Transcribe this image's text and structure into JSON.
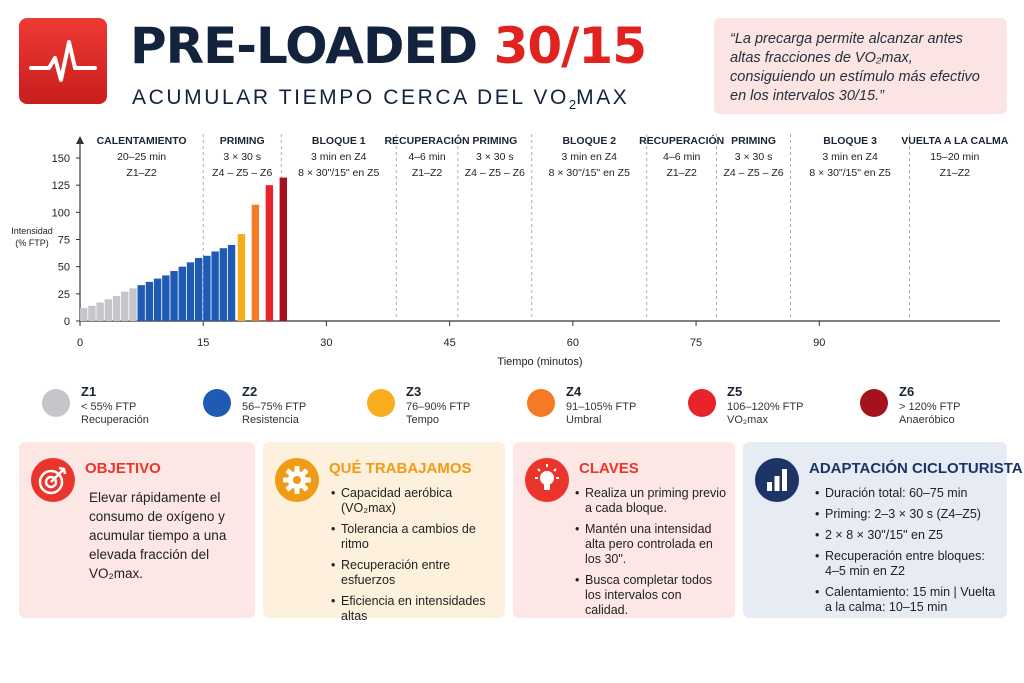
{
  "header": {
    "title_main": "PRE-LOADED ",
    "title_accent": "30/15",
    "subtitle_pre": "ACUMULAR TIEMPO CERCA DEL VO",
    "subtitle_sub": "2",
    "subtitle_post": "MAX",
    "quote": "“La precarga permite alcanzar antes altas fracciones de VO₂max, consiguiendo un estímulo más efectivo en los intervalos 30/15.”",
    "logo_icon": "heartbeat-icon"
  },
  "chart_data": {
    "type": "bar",
    "title": "",
    "xlabel": "Tiempo (minutos)",
    "ylabel": "Intensidad (% FTP)",
    "xlim": [
      0,
      112
    ],
    "ylim": [
      0,
      150
    ],
    "x_ticks": [
      0,
      15,
      30,
      45,
      60,
      75,
      90
    ],
    "y_ticks": [
      0,
      25,
      50,
      75,
      100,
      125,
      150
    ],
    "zone_colors": {
      "Z1": "#c4c6ca",
      "Z2": "#1f5bb3",
      "Z3": "#f9ac1c",
      "Z4": "#f57a26",
      "Z5": "#e8242a",
      "Z6": "#a5121d"
    },
    "phases": [
      {
        "name": "CALENTAMIENTO",
        "lines": [
          "20–25 min",
          "Z1–Z2"
        ]
      },
      {
        "name": "PRIMING",
        "lines": [
          "3 × 30 s",
          "Z4 – Z5 – Z6"
        ]
      },
      {
        "name": "BLOQUE 1",
        "lines": [
          "3 min en Z4",
          "8 × 30\"/15\" en Z5"
        ]
      },
      {
        "name": "RECUPERACIÓN",
        "lines": [
          "4–6 min",
          "Z1–Z2"
        ]
      },
      {
        "name": "PRIMING",
        "lines": [
          "3 × 30 s",
          "Z4 – Z5 – Z6"
        ]
      },
      {
        "name": "BLOQUE 2",
        "lines": [
          "3 min en Z4",
          "8 × 30\"/15\" en Z5"
        ]
      },
      {
        "name": "RECUPERACIÓN",
        "lines": [
          "4–6 min",
          "Z1–Z2"
        ]
      },
      {
        "name": "PRIMING",
        "lines": [
          "3 × 30 s",
          "Z4 – Z5 – Z6"
        ]
      },
      {
        "name": "BLOQUE 3",
        "lines": [
          "3 min en Z4",
          "8 × 30\"/15\" en Z5"
        ]
      },
      {
        "name": "VUELTA A LA CALMA",
        "lines": [
          "15–20 min",
          "Z1–Z2"
        ]
      }
    ],
    "phase_boundaries": [
      0,
      15,
      24.5,
      38.5,
      46,
      55,
      69,
      77.5,
      86.5,
      101,
      112
    ],
    "series": [
      {
        "zone": "Z1",
        "values": [
          [
            0,
            12
          ],
          [
            1,
            14
          ],
          [
            2,
            17
          ],
          [
            3,
            20
          ],
          [
            4,
            23
          ],
          [
            5,
            27
          ],
          [
            6,
            30
          ]
        ]
      },
      {
        "zone": "Z2",
        "values": [
          [
            7,
            33
          ],
          [
            8,
            36
          ],
          [
            9,
            39
          ],
          [
            10,
            42
          ],
          [
            11,
            46
          ],
          [
            12,
            50
          ],
          [
            13,
            54
          ],
          [
            14,
            58
          ],
          [
            15,
            60
          ],
          [
            16,
            64
          ],
          [
            17,
            67
          ],
          [
            18,
            70
          ]
        ]
      },
      {
        "zone": "Z3",
        "values": [
          [
            19.2,
            80
          ]
        ]
      },
      {
        "zone": "Z4",
        "values": [
          [
            20.9,
            107
          ]
        ]
      },
      {
        "zone": "Z5",
        "values": [
          [
            22.6,
            125
          ]
        ]
      },
      {
        "zone": "Z6",
        "values": [
          [
            24.3,
            132
          ]
        ]
      }
    ]
  },
  "legend": [
    {
      "code": "Z1",
      "line1": "< 55% FTP",
      "line2": "Recuperación",
      "color": "#c4c6ca"
    },
    {
      "code": "Z2",
      "line1": "56–75% FTP",
      "line2": "Resistencia",
      "color": "#1f5bb3"
    },
    {
      "code": "Z3",
      "line1": "76–90% FTP",
      "line2": "Tempo",
      "color": "#f9ac1c"
    },
    {
      "code": "Z4",
      "line1": "91–105% FTP",
      "line2": "Umbral",
      "color": "#f57a26"
    },
    {
      "code": "Z5",
      "line1": "106–120% FTP",
      "line2": "VO₂max",
      "color": "#e8242a"
    },
    {
      "code": "Z6",
      "line1": "> 120% FTP",
      "line2": "Anaeróbico",
      "color": "#a5121d"
    }
  ],
  "cards": {
    "objetivo": {
      "title": "OBJETIVO",
      "text": "Elevar rápidamente el consumo de oxígeno y acumular tiempo a una elevada fracción del VO₂max.",
      "icon": "target-icon",
      "bg": "#fde7e5",
      "accent": "#e9352c"
    },
    "trabajamos": {
      "title": "QUÉ TRABAJAMOS",
      "items": [
        "Capacidad aeróbica (VO₂max)",
        "Tolerancia a cambios de ritmo",
        "Recuperación entre esfuerzos",
        "Eficiencia en intensidades altas"
      ],
      "icon": "gear-icon",
      "bg": "#fdf0dc",
      "accent": "#f09a16"
    },
    "claves": {
      "title": "CLAVES",
      "items": [
        "Realiza un priming previo a cada bloque.",
        "Mantén una intensidad alta pero controlada en los 30\".",
        "Busca completar todos los intervalos con calidad."
      ],
      "icon": "lightbulb-icon",
      "bg": "#fde7e5",
      "accent": "#e9352c"
    },
    "adaptacion": {
      "title": "ADAPTACIÓN CICLOTURISTA",
      "items": [
        "Duración total: 60–75 min",
        "Priming: 2–3 × 30 s (Z4–Z5)",
        "2 × 8 × 30\"/15\" en Z5",
        "Recuperación entre bloques: 4–5 min en Z2",
        "Calentamiento: 15 min | Vuelta a la calma: 10–15 min"
      ],
      "icon": "bar-chart-icon",
      "bg": "#e6ebf4",
      "accent": "#1d3566"
    }
  }
}
